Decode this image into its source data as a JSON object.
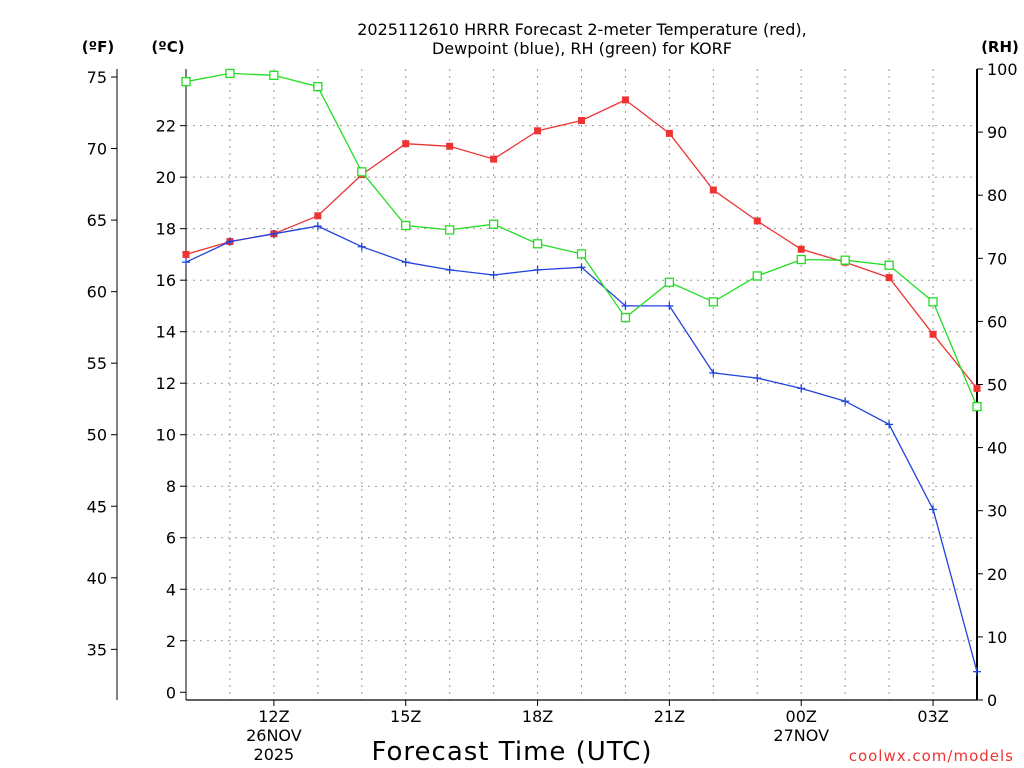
{
  "chart_data": {
    "type": "line",
    "title_line1": "2025112610 HRRR Forecast 2-meter Temperature (red),",
    "title_line2": "Dewpoint (blue), RH (green) for KORF",
    "xlabel": "Forecast Time (UTC)",
    "credit": "coolwx.com/models",
    "axis_labels": {
      "fahrenheit": "(ºF)",
      "celsius": "(ºC)",
      "rh": "(RH)"
    },
    "hours": [
      10,
      11,
      12,
      13,
      14,
      15,
      16,
      17,
      18,
      19,
      20,
      21,
      22,
      23,
      24,
      25,
      26,
      27,
      28
    ],
    "xlim": [
      10,
      28
    ],
    "x_ticks": [
      {
        "h": 12,
        "l1": "12Z",
        "l2": "26NOV",
        "l3": "2025"
      },
      {
        "h": 15,
        "l1": "15Z",
        "l2": "",
        "l3": ""
      },
      {
        "h": 18,
        "l1": "18Z",
        "l2": "",
        "l3": ""
      },
      {
        "h": 21,
        "l1": "21Z",
        "l2": "",
        "l3": ""
      },
      {
        "h": 24,
        "l1": "00Z",
        "l2": "27NOV",
        "l3": ""
      },
      {
        "h": 27,
        "l1": "03Z",
        "l2": "",
        "l3": ""
      }
    ],
    "celsius_lim": [
      -0.3,
      24.2
    ],
    "celsius_ticks": [
      0,
      2,
      4,
      6,
      8,
      10,
      12,
      14,
      16,
      18,
      20,
      22
    ],
    "fahrenheit_ticks": [
      35,
      40,
      45,
      50,
      55,
      60,
      65,
      70,
      75
    ],
    "rh_lim": [
      0,
      100
    ],
    "rh_ticks": [
      0,
      10,
      20,
      30,
      40,
      50,
      60,
      70,
      80,
      90,
      100
    ],
    "series": [
      {
        "name": "Temperature",
        "axis": "celsius",
        "color": "#ee3333",
        "marker": "filled-square",
        "values": [
          17.0,
          17.5,
          17.8,
          18.5,
          20.1,
          21.3,
          21.2,
          20.7,
          21.8,
          22.2,
          23.0,
          21.7,
          19.5,
          18.3,
          17.2,
          16.7,
          16.1,
          13.9,
          11.8
        ]
      },
      {
        "name": "Dewpoint",
        "axis": "celsius",
        "color": "#2244dd",
        "marker": "plus",
        "values": [
          16.7,
          17.5,
          17.8,
          18.1,
          17.3,
          16.7,
          16.4,
          16.2,
          16.4,
          16.5,
          15.0,
          15.0,
          12.4,
          12.2,
          11.8,
          11.3,
          10.4,
          7.1,
          0.8
        ]
      },
      {
        "name": "RH",
        "axis": "rh",
        "color": "#22dd22",
        "marker": "open-square",
        "values": [
          98,
          99.3,
          99.0,
          97.2,
          83.7,
          75.2,
          74.5,
          75.4,
          72.3,
          70.7,
          60.6,
          66.2,
          63.1,
          67.2,
          69.8,
          69.7,
          68.9,
          63.1,
          46.5
        ]
      }
    ]
  }
}
